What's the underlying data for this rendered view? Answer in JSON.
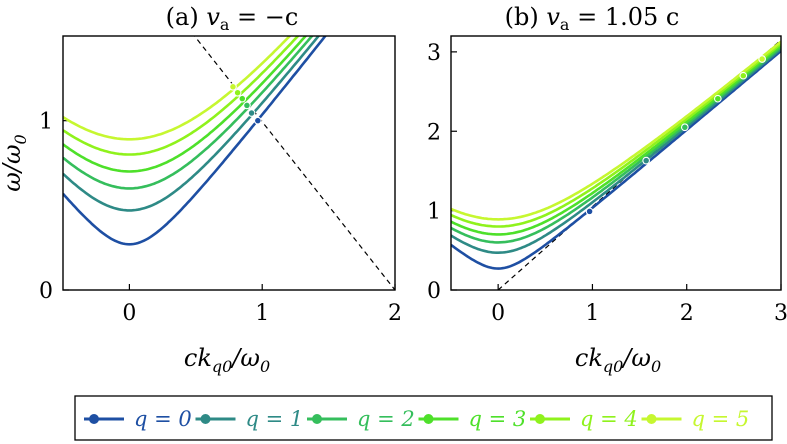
{
  "chart_data": [
    {
      "type": "line",
      "panel": "a",
      "title_prefix": "(a) ",
      "title_var": "v",
      "title_sub": "a",
      "title_value": " = −c",
      "xlabel_var": "ck",
      "xlabel_sub": "q0",
      "xlabel_rest": "/ω",
      "xlabel_rest_sub": "0",
      "ylabel_var": "ω/ω",
      "ylabel_sub": "0",
      "xlim": [
        -0.5,
        2.0
      ],
      "ylim": [
        0,
        1.5
      ],
      "xticks": [
        0,
        1,
        2
      ],
      "xtick_labels": [
        "0",
        "1",
        "2"
      ],
      "yticks": [
        0,
        1
      ],
      "ytick_labels": [
        "0",
        "1"
      ],
      "light_line": {
        "style": "dashed",
        "x": [
          0.47,
          2.0
        ],
        "y": [
          1.52,
          0.0
        ]
      },
      "series": [
        {
          "name": "q = 0",
          "omega0": 0.27,
          "marker": [
            0.967,
            1.0
          ]
        },
        {
          "name": "q = 1",
          "omega0": 0.47,
          "marker": [
            0.92,
            1.045
          ]
        },
        {
          "name": "q = 2",
          "omega0": 0.6,
          "marker": [
            0.885,
            1.09
          ]
        },
        {
          "name": "q = 3",
          "omega0": 0.7,
          "marker": [
            0.85,
            1.13
          ]
        },
        {
          "name": "q = 4",
          "omega0": 0.8,
          "marker": [
            0.815,
            1.165
          ]
        },
        {
          "name": "q = 5",
          "omega0": 0.89,
          "marker": [
            0.78,
            1.2
          ]
        }
      ]
    },
    {
      "type": "line",
      "panel": "b",
      "title_prefix": "(b) ",
      "title_var": "v",
      "title_sub": "a",
      "title_value": " = 1.05 c",
      "xlabel_var": "ck",
      "xlabel_sub": "q0",
      "xlabel_rest": "/ω",
      "xlabel_rest_sub": "0",
      "xlim": [
        -0.5,
        3.0
      ],
      "ylim": [
        0,
        3.2
      ],
      "xticks": [
        0,
        1,
        2,
        3
      ],
      "xtick_labels": [
        "0",
        "1",
        "2",
        "3"
      ],
      "yticks": [
        0,
        1,
        2,
        3
      ],
      "ytick_labels": [
        "0",
        "1",
        "2",
        "3"
      ],
      "light_line": {
        "style": "dashed",
        "x": [
          0.0,
          3.0
        ],
        "y": [
          0.0,
          3.15
        ]
      },
      "series": [
        {
          "name": "q = 0",
          "omega0": 0.27,
          "marker": [
            0.97,
            0.99
          ]
        },
        {
          "name": "q = 1",
          "omega0": 0.47,
          "marker": [
            1.57,
            1.63
          ]
        },
        {
          "name": "q = 2",
          "omega0": 0.6,
          "marker": [
            1.98,
            2.05
          ]
        },
        {
          "name": "q = 3",
          "omega0": 0.7,
          "marker": [
            2.33,
            2.41
          ]
        },
        {
          "name": "q = 4",
          "omega0": 0.8,
          "marker": [
            2.6,
            2.7
          ]
        },
        {
          "name": "q = 5",
          "omega0": 0.89,
          "marker": [
            2.8,
            2.91
          ]
        }
      ]
    }
  ],
  "legend": {
    "placement": "bottom",
    "items": [
      {
        "label": "q = 0",
        "color": "#1e4fa3"
      },
      {
        "label": "q = 1",
        "color": "#2e8a86"
      },
      {
        "label": "q = 2",
        "color": "#35be5c"
      },
      {
        "label": "q = 3",
        "color": "#4ee02a"
      },
      {
        "label": "q = 4",
        "color": "#8ff21c"
      },
      {
        "label": "q = 5",
        "color": "#c6f730"
      }
    ]
  }
}
